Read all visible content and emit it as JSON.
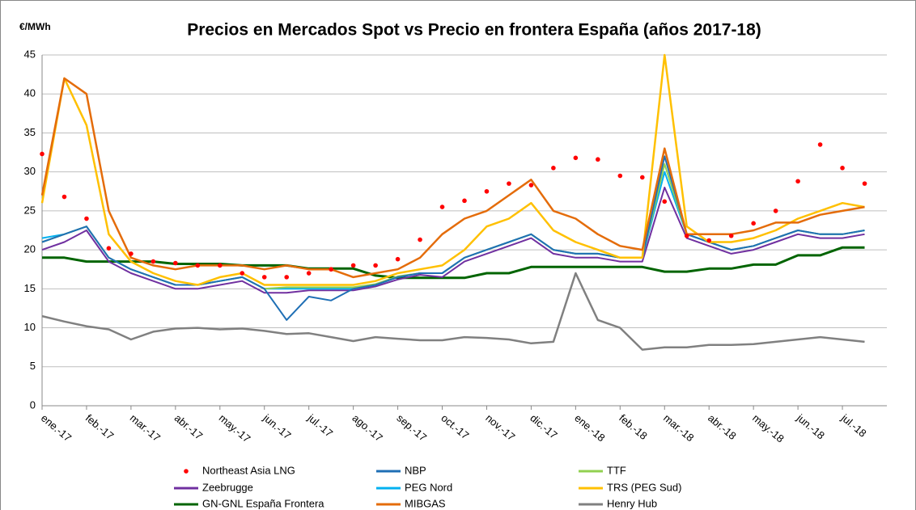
{
  "chart_data": {
    "type": "line",
    "title": "Precios en Mercados Spot vs Precio en frontera España (años 2017-18)",
    "y_label": "€/MWh",
    "categories": [
      "ene.-17",
      null,
      "feb.-17",
      null,
      "mar.-17",
      null,
      "abr.-17",
      null,
      "may.-17",
      null,
      "jun.-17",
      null,
      "jul.-17",
      null,
      "ago.-17",
      null,
      "sep.-17",
      null,
      "oct.-17",
      null,
      "nov.-17",
      null,
      "dic.-17",
      null,
      "ene.-18",
      null,
      "feb.-18",
      null,
      "mar.-18",
      null,
      "abr.-18",
      null,
      "may.-18",
      null,
      "jun.-18",
      null,
      "jul.-18",
      null
    ],
    "ylim": [
      0,
      45
    ],
    "yticks": [
      0,
      5,
      10,
      15,
      20,
      25,
      30,
      35,
      40,
      45
    ],
    "grid": true,
    "series": [
      {
        "name": "Henry Hub",
        "color": "#808080",
        "width": 2.5,
        "values": [
          11.5,
          10.8,
          10.2,
          9.8,
          8.5,
          9.5,
          9.9,
          10,
          9.8,
          9.9,
          9.6,
          9.2,
          9.3,
          8.8,
          8.3,
          8.8,
          8.6,
          8.4,
          8.4,
          8.8,
          8.7,
          8.5,
          8,
          8.2,
          17,
          11,
          10,
          7.2,
          7.5,
          7.5,
          7.8,
          7.8,
          7.9,
          8.2,
          8.5,
          8.8,
          8.5,
          8.2
        ]
      },
      {
        "name": "GN-GNL España Frontera",
        "color": "#006400",
        "width": 3,
        "values": [
          19,
          19,
          18.5,
          18.5,
          18.5,
          18.5,
          18.2,
          18.2,
          18.2,
          18,
          18,
          18,
          17.6,
          17.6,
          17.6,
          16.7,
          16.4,
          16.4,
          16.4,
          16.4,
          17,
          17,
          17.8,
          17.8,
          17.8,
          17.8,
          17.8,
          17.8,
          17.2,
          17.2,
          17.6,
          17.6,
          18.1,
          18.1,
          19.3,
          19.3,
          20.3,
          20.3
        ]
      },
      {
        "name": "Zeebrugge",
        "color": "#7030a0",
        "width": 2,
        "values": [
          20,
          21,
          22.5,
          18.5,
          17,
          16,
          15,
          15,
          15.5,
          16,
          14.5,
          14.5,
          14.8,
          14.8,
          14.8,
          15.3,
          16.2,
          16.8,
          16.5,
          18.5,
          19.5,
          20.5,
          21.5,
          19.5,
          19,
          19,
          18.5,
          18.5,
          28,
          21.5,
          20.5,
          19.5,
          20,
          21,
          22,
          21.5,
          21.5,
          22
        ]
      },
      {
        "name": "PEG Nord",
        "color": "#00b0f0",
        "width": 2,
        "values": [
          21.5,
          22,
          23,
          19,
          17.5,
          16.5,
          15.5,
          15.5,
          16,
          16.5,
          15,
          15,
          15,
          15,
          15,
          15.5,
          16.5,
          17,
          17,
          19,
          20,
          21,
          22,
          20,
          19.5,
          19.5,
          19,
          19,
          30,
          22,
          21,
          20,
          20.5,
          21.5,
          22.5,
          22,
          22,
          22.5
        ]
      },
      {
        "name": "TTF",
        "color": "#92d050",
        "width": 2,
        "values": [
          21,
          22,
          23,
          19,
          17.5,
          16.5,
          15.5,
          15.5,
          16,
          16.5,
          15,
          15.2,
          15.2,
          15.2,
          15.2,
          15.6,
          16.6,
          17,
          17,
          19,
          20,
          21,
          22,
          20,
          19.5,
          19.5,
          19,
          19,
          31,
          22,
          21,
          20,
          20.5,
          21.5,
          22.5,
          22,
          22,
          22.5
        ]
      },
      {
        "name": "NBP",
        "color": "#1f6fb5",
        "width": 2,
        "values": [
          21,
          22,
          23,
          19,
          17.5,
          16.5,
          15.5,
          15.5,
          16,
          16.5,
          15,
          11,
          14,
          13.5,
          15,
          15.5,
          16.5,
          17,
          17,
          19,
          20,
          21,
          22,
          20,
          19.5,
          19.5,
          19,
          19,
          32,
          22,
          21,
          20,
          20.5,
          21.5,
          22.5,
          22,
          22,
          22.5
        ]
      },
      {
        "name": "TRS (PEG Sud)",
        "color": "#ffc000",
        "width": 2.5,
        "values": [
          26,
          42,
          36,
          22,
          18.5,
          17,
          16,
          15.5,
          16.5,
          17,
          15.5,
          15.5,
          15.5,
          15.5,
          15.5,
          16,
          17,
          17.5,
          18,
          20,
          23,
          24,
          26,
          22.5,
          21,
          20,
          19,
          19,
          45,
          23,
          21,
          21,
          21.5,
          22.5,
          24,
          25,
          26,
          25.5
        ]
      },
      {
        "name": "MIBGAS",
        "color": "#e46c0a",
        "width": 2.5,
        "values": [
          27,
          42,
          40,
          25,
          19,
          18,
          17.5,
          18,
          18,
          18,
          17.5,
          18,
          17.5,
          17.5,
          16.5,
          17,
          17.5,
          19,
          22,
          24,
          25,
          27,
          29,
          25,
          24,
          22,
          20.5,
          20,
          33,
          22,
          22,
          22,
          22.5,
          23.5,
          23.5,
          24.5,
          25,
          25.5
        ]
      },
      {
        "name": "Northeast Asia LNG",
        "color": "#ff0000",
        "mode": "markers",
        "values": [
          32.3,
          26.8,
          24,
          20.2,
          19.5,
          18.5,
          18.3,
          18,
          18,
          17,
          16.5,
          16.5,
          17,
          17.5,
          18,
          18,
          18.8,
          21.3,
          25.5,
          26.3,
          27.5,
          28.5,
          28.3,
          30.5,
          31.8,
          31.6,
          29.5,
          29.3,
          26.2,
          21.8,
          21.2,
          21.8,
          23.4,
          25,
          28.8,
          33.5,
          30.5,
          28.5
        ]
      }
    ],
    "legend_order": [
      8,
      5,
      4,
      2,
      3,
      6,
      1,
      7,
      0
    ]
  }
}
